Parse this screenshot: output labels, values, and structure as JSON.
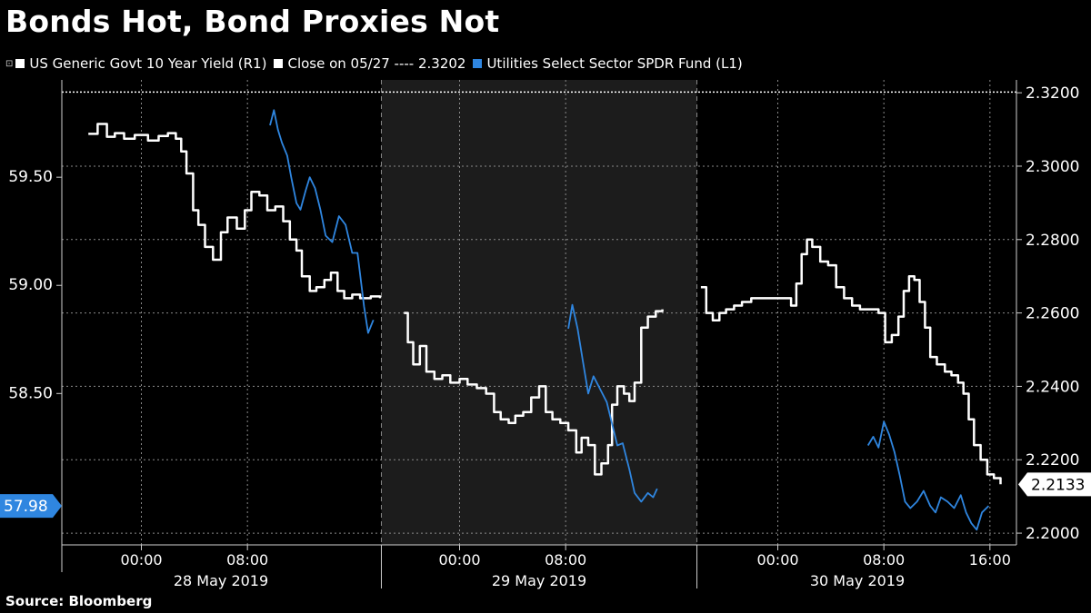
{
  "title": "Bonds Hot, Bond Proxies Not",
  "source": "Source: Bloomberg",
  "colors": {
    "background": "#000000",
    "shade": "#1c1c1c",
    "yield_line": "#ffffff",
    "utilities_line": "#2f86e0",
    "grid": "#8a8a8a"
  },
  "legend": {
    "yield_label": "US Generic Govt 10 Year Yield  (R1)",
    "close_label": "Close on 05/27 ---- 2.3202",
    "utilities_label": "Utilities Select Sector SPDR Fund  (L1)"
  },
  "chart_data": {
    "type": "line",
    "title": "Bonds Hot, Bond Proxies Not",
    "x_unit": "hours since 00:00 28 May 2019",
    "x_range": [
      -6,
      66
    ],
    "x_ticks": [
      {
        "x": 0,
        "label": "00:00"
      },
      {
        "x": 8,
        "label": "08:00"
      },
      {
        "x": 24,
        "label": "00:00"
      },
      {
        "x": 32,
        "label": "08:00"
      },
      {
        "x": 48,
        "label": "00:00"
      },
      {
        "x": 56,
        "label": "08:00"
      },
      {
        "x": 64,
        "label": "16:00"
      }
    ],
    "date_labels": [
      {
        "x": 6,
        "label": "28 May 2019"
      },
      {
        "x": 30,
        "label": "29 May 2019"
      },
      {
        "x": 54,
        "label": "30 May 2019"
      }
    ],
    "shaded_region": [
      18.1,
      41.9
    ],
    "left_axis": {
      "ylim": [
        57.8,
        59.95
      ],
      "ticks": [
        {
          "v": 59.5,
          "label": "59.50"
        },
        {
          "v": 59.0,
          "label": "59.00"
        },
        {
          "v": 58.5,
          "label": "58.50"
        }
      ],
      "last_value": 57.98,
      "last_value_label": "57.98"
    },
    "right_axis": {
      "ylim": [
        2.1968,
        2.3235
      ],
      "ticks": [
        {
          "v": 2.32,
          "label": "2.3200"
        },
        {
          "v": 2.3,
          "label": "2.3000"
        },
        {
          "v": 2.28,
          "label": "2.2800"
        },
        {
          "v": 2.26,
          "label": "2.2600"
        },
        {
          "v": 2.24,
          "label": "2.2400"
        },
        {
          "v": 2.22,
          "label": "2.2200"
        },
        {
          "v": 2.2,
          "label": "2.2000"
        }
      ],
      "last_value": 2.2133,
      "last_value_label": "2.2133"
    },
    "reference_line": {
      "name": "Close on 05/27",
      "value": 2.3202,
      "axis": "right"
    },
    "series": [
      {
        "name": "US Generic Govt 10 Year Yield",
        "axis": "right",
        "segments": [
          [
            [
              -4.0,
              2.3088
            ],
            [
              -3.3,
              2.3115
            ],
            [
              -2.6,
              2.308
            ],
            [
              -2.0,
              2.309
            ],
            [
              -1.3,
              2.3075
            ],
            [
              -0.5,
              2.3085
            ],
            [
              0.5,
              2.307
            ],
            [
              1.3,
              2.3082
            ],
            [
              2.0,
              2.309
            ],
            [
              2.6,
              2.3075
            ],
            [
              3.0,
              2.304
            ],
            [
              3.4,
              2.298
            ],
            [
              3.9,
              2.288
            ],
            [
              4.3,
              2.284
            ],
            [
              4.8,
              2.278
            ],
            [
              5.4,
              2.2745
            ],
            [
              6.0,
              2.282
            ],
            [
              6.5,
              2.286
            ],
            [
              7.2,
              2.283
            ],
            [
              7.8,
              2.288
            ],
            [
              8.3,
              2.293
            ],
            [
              8.9,
              2.292
            ],
            [
              9.5,
              2.288
            ],
            [
              10.1,
              2.289
            ],
            [
              10.7,
              2.285
            ],
            [
              11.2,
              2.28
            ],
            [
              11.7,
              2.277
            ],
            [
              12.1,
              2.27
            ],
            [
              12.7,
              2.266
            ],
            [
              13.2,
              2.267
            ],
            [
              13.8,
              2.269
            ],
            [
              14.3,
              2.271
            ],
            [
              14.8,
              2.266
            ],
            [
              15.3,
              2.264
            ],
            [
              15.9,
              2.265
            ],
            [
              16.5,
              2.264
            ],
            [
              17.3,
              2.2645
            ],
            [
              18.0,
              2.264
            ]
          ],
          [
            [
              19.8,
              2.26
            ],
            [
              20.1,
              2.252
            ],
            [
              20.5,
              2.246
            ],
            [
              21.0,
              2.251
            ],
            [
              21.5,
              2.244
            ],
            [
              22.1,
              2.242
            ],
            [
              22.7,
              2.243
            ],
            [
              23.3,
              2.241
            ],
            [
              24.0,
              2.242
            ],
            [
              24.6,
              2.2405
            ],
            [
              25.3,
              2.2395
            ],
            [
              26.0,
              2.238
            ],
            [
              26.6,
              2.233
            ],
            [
              27.1,
              2.231
            ],
            [
              27.7,
              2.23
            ],
            [
              28.2,
              2.232
            ],
            [
              28.8,
              2.233
            ],
            [
              29.4,
              2.237
            ],
            [
              30.0,
              2.24
            ],
            [
              30.5,
              2.233
            ],
            [
              31.0,
              2.231
            ],
            [
              31.6,
              2.23
            ],
            [
              32.2,
              2.228
            ],
            [
              32.8,
              2.222
            ],
            [
              33.2,
              2.226
            ],
            [
              33.7,
              2.224
            ],
            [
              34.2,
              2.216
            ],
            [
              34.7,
              2.219
            ],
            [
              35.2,
              2.224
            ],
            [
              35.5,
              2.235
            ],
            [
              35.9,
              2.24
            ],
            [
              36.4,
              2.238
            ],
            [
              36.8,
              2.236
            ],
            [
              37.2,
              2.241
            ],
            [
              37.7,
              2.256
            ],
            [
              38.2,
              2.259
            ],
            [
              38.8,
              2.2605
            ],
            [
              39.3,
              2.261
            ]
          ],
          [
            [
              42.2,
              2.267
            ],
            [
              42.6,
              2.26
            ],
            [
              43.1,
              2.258
            ],
            [
              43.6,
              2.26
            ],
            [
              44.1,
              2.261
            ],
            [
              44.7,
              2.262
            ],
            [
              45.3,
              2.263
            ],
            [
              46.0,
              2.264
            ],
            [
              46.8,
              2.264
            ],
            [
              47.6,
              2.264
            ],
            [
              48.4,
              2.264
            ],
            [
              49.0,
              2.262
            ],
            [
              49.4,
              2.268
            ],
            [
              49.8,
              2.276
            ],
            [
              50.2,
              2.28
            ],
            [
              50.6,
              2.278
            ],
            [
              51.2,
              2.274
            ],
            [
              51.8,
              2.273
            ],
            [
              52.4,
              2.267
            ],
            [
              53.0,
              2.264
            ],
            [
              53.6,
              2.262
            ],
            [
              54.2,
              2.261
            ],
            [
              54.9,
              2.261
            ],
            [
              55.6,
              2.26
            ],
            [
              56.1,
              2.252
            ],
            [
              56.6,
              2.254
            ],
            [
              57.1,
              2.259
            ],
            [
              57.5,
              2.266
            ],
            [
              57.9,
              2.27
            ],
            [
              58.3,
              2.269
            ],
            [
              58.7,
              2.263
            ],
            [
              59.1,
              2.256
            ],
            [
              59.5,
              2.248
            ],
            [
              60.0,
              2.246
            ],
            [
              60.6,
              2.244
            ],
            [
              61.1,
              2.243
            ],
            [
              61.6,
              2.241
            ],
            [
              62.0,
              2.238
            ],
            [
              62.4,
              2.231
            ],
            [
              62.8,
              2.224
            ],
            [
              63.3,
              2.22
            ],
            [
              63.8,
              2.216
            ],
            [
              64.3,
              2.215
            ],
            [
              64.8,
              2.2133
            ]
          ]
        ]
      },
      {
        "name": "Utilities Select Sector SPDR Fund",
        "axis": "left",
        "segments": [
          [
            [
              9.7,
              59.74
            ],
            [
              10.0,
              59.81
            ],
            [
              10.3,
              59.72
            ],
            [
              10.6,
              59.66
            ],
            [
              11.0,
              59.6
            ],
            [
              11.3,
              59.5
            ],
            [
              11.7,
              59.38
            ],
            [
              12.0,
              59.35
            ],
            [
              12.4,
              59.44
            ],
            [
              12.7,
              59.5
            ],
            [
              13.1,
              59.45
            ],
            [
              13.5,
              59.35
            ],
            [
              13.9,
              59.23
            ],
            [
              14.4,
              59.2
            ],
            [
              14.9,
              59.32
            ],
            [
              15.4,
              59.28
            ],
            [
              15.9,
              59.15
            ],
            [
              16.3,
              59.15
            ],
            [
              16.8,
              58.9
            ],
            [
              17.1,
              58.78
            ],
            [
              17.5,
              58.84
            ]
          ],
          [
            [
              32.2,
              58.8
            ],
            [
              32.5,
              58.91
            ],
            [
              32.9,
              58.8
            ],
            [
              33.3,
              58.65
            ],
            [
              33.7,
              58.5
            ],
            [
              34.1,
              58.58
            ],
            [
              34.6,
              58.52
            ],
            [
              35.1,
              58.46
            ],
            [
              35.5,
              58.36
            ],
            [
              35.9,
              58.26
            ],
            [
              36.3,
              58.27
            ],
            [
              36.8,
              58.15
            ],
            [
              37.2,
              58.04
            ],
            [
              37.7,
              58.0
            ],
            [
              38.2,
              58.04
            ],
            [
              38.6,
              58.02
            ],
            [
              38.9,
              58.06
            ]
          ],
          [
            [
              54.8,
              58.26
            ],
            [
              55.2,
              58.3
            ],
            [
              55.6,
              58.25
            ],
            [
              56.0,
              58.37
            ],
            [
              56.4,
              58.31
            ],
            [
              56.8,
              58.23
            ],
            [
              57.2,
              58.12
            ],
            [
              57.6,
              58.0
            ],
            [
              58.0,
              57.97
            ],
            [
              58.5,
              58.0
            ],
            [
              59.0,
              58.05
            ],
            [
              59.5,
              57.98
            ],
            [
              59.9,
              57.95
            ],
            [
              60.3,
              58.02
            ],
            [
              60.8,
              58.0
            ],
            [
              61.3,
              57.97
            ],
            [
              61.8,
              58.03
            ],
            [
              62.2,
              57.95
            ],
            [
              62.6,
              57.9
            ],
            [
              63.0,
              57.87
            ],
            [
              63.4,
              57.95
            ],
            [
              63.9,
              57.98
            ]
          ]
        ]
      }
    ]
  }
}
